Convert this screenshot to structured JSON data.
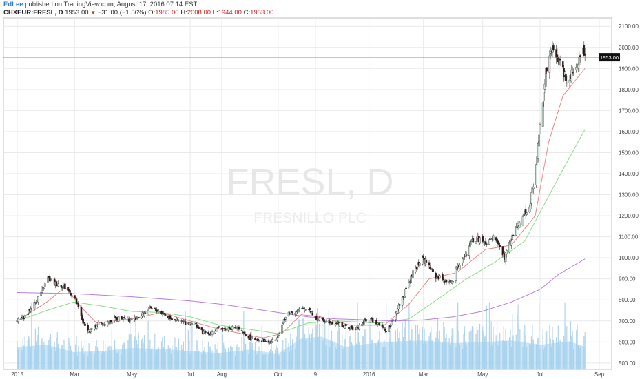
{
  "header": {
    "author": "EdLee",
    "published": "published on TradingView.com, August 17, 2016 07:14 EST",
    "symbol": "CHXEUR:FRESL, D",
    "last": "1953.00",
    "change": "−31.00 (−1.56%)",
    "o_label": "O:",
    "o_value": "1985.00",
    "h_label": "H:",
    "h_value": "2008.00",
    "l_label": "L:",
    "l_value": "1944.00",
    "c_label": "C:",
    "c_value": "1953.00"
  },
  "watermark": {
    "line1": "FRESL, D",
    "line2": "FRESNILLO PLC"
  },
  "colors": {
    "up": "#cfe5d9",
    "down": "#3a1212",
    "wick": "#333333",
    "ma_fast": "#e8868a",
    "ma_mid": "#86de86",
    "ma_slow": "#b77ce8",
    "volume": "#a3cde8",
    "volume_avg": "#9fd0ef",
    "grid": "#e9e9e9"
  },
  "chart_data": {
    "type": "candlestick",
    "title": "",
    "ylim": [
      470,
      2140
    ],
    "y_ticks": [
      500,
      600,
      700,
      800,
      900,
      1000,
      1100,
      1200,
      1300,
      1400,
      1500,
      1600,
      1700,
      1800,
      1900,
      2000,
      2100
    ],
    "y_tick_labels": [
      "500.00",
      "600.00",
      "700.00",
      "800.00",
      "900.00",
      "1000.00",
      "1100.00",
      "1200.00",
      "1300.00",
      "1400.00",
      "1500.00",
      "1600.00",
      "1700.00",
      "1800.00",
      "1900.00",
      "2000.00",
      "2100.00"
    ],
    "x_tick_labels": [
      {
        "label": "2015",
        "date": "2015-01-01"
      },
      {
        "label": "Mar",
        "date": "2015-03-02"
      },
      {
        "label": "May",
        "date": "2015-05-01"
      },
      {
        "label": "Jul",
        "date": "2015-07-01"
      },
      {
        "label": "Aug",
        "date": "2015-08-03"
      },
      {
        "label": "Oct",
        "date": "2015-10-01"
      },
      {
        "label": "9",
        "date": "2015-11-09"
      },
      {
        "label": "2016",
        "date": "2016-01-04"
      },
      {
        "label": "Mar",
        "date": "2016-03-01"
      },
      {
        "label": "May",
        "date": "2016-05-02"
      },
      {
        "label": "Jul",
        "date": "2016-07-01"
      },
      {
        "label": "Sep",
        "date": "2016-09-01"
      }
    ],
    "price_line": {
      "value": 1953,
      "label": "1953.00"
    },
    "close_path": [
      [
        "2015-01-01",
        700
      ],
      [
        "2015-01-10",
        725
      ],
      [
        "2015-01-20",
        790
      ],
      [
        "2015-01-28",
        850
      ],
      [
        "2015-02-02",
        905
      ],
      [
        "2015-02-07",
        880
      ],
      [
        "2015-02-14",
        875
      ],
      [
        "2015-02-20",
        860
      ],
      [
        "2015-03-01",
        820
      ],
      [
        "2015-03-06",
        760
      ],
      [
        "2015-03-12",
        680
      ],
      [
        "2015-03-18",
        650
      ],
      [
        "2015-03-27",
        690
      ],
      [
        "2015-04-05",
        690
      ],
      [
        "2015-04-14",
        710
      ],
      [
        "2015-04-22",
        720
      ],
      [
        "2015-04-29",
        705
      ],
      [
        "2015-05-09",
        720
      ],
      [
        "2015-05-20",
        760
      ],
      [
        "2015-05-30",
        745
      ],
      [
        "2015-06-08",
        720
      ],
      [
        "2015-06-18",
        700
      ],
      [
        "2015-06-28",
        690
      ],
      [
        "2015-07-06",
        690
      ],
      [
        "2015-07-12",
        650
      ],
      [
        "2015-07-20",
        640
      ],
      [
        "2015-07-29",
        660
      ],
      [
        "2015-08-10",
        665
      ],
      [
        "2015-08-19",
        670
      ],
      [
        "2015-08-25",
        640
      ],
      [
        "2015-09-04",
        615
      ],
      [
        "2015-09-13",
        610
      ],
      [
        "2015-09-22",
        600
      ],
      [
        "2015-09-28",
        610
      ],
      [
        "2015-10-05",
        680
      ],
      [
        "2015-10-12",
        740
      ],
      [
        "2015-10-23",
        750
      ],
      [
        "2015-11-02",
        760
      ],
      [
        "2015-11-10",
        710
      ],
      [
        "2015-11-22",
        700
      ],
      [
        "2015-12-01",
        690
      ],
      [
        "2015-12-11",
        670
      ],
      [
        "2015-12-21",
        660
      ],
      [
        "2016-01-01",
        705
      ],
      [
        "2016-01-09",
        700
      ],
      [
        "2016-01-15",
        690
      ],
      [
        "2016-01-22",
        650
      ],
      [
        "2016-01-29",
        700
      ],
      [
        "2016-02-05",
        780
      ],
      [
        "2016-02-14",
        870
      ],
      [
        "2016-02-20",
        940
      ],
      [
        "2016-02-29",
        1000
      ],
      [
        "2016-03-07",
        960
      ],
      [
        "2016-03-14",
        910
      ],
      [
        "2016-03-20",
        900
      ],
      [
        "2016-03-31",
        880
      ],
      [
        "2016-04-06",
        960
      ],
      [
        "2016-04-14",
        1010
      ],
      [
        "2016-04-20",
        1080
      ],
      [
        "2016-04-29",
        1090
      ],
      [
        "2016-05-06",
        1060
      ],
      [
        "2016-05-14",
        1100
      ],
      [
        "2016-05-19",
        1060
      ],
      [
        "2016-05-25",
        1000
      ],
      [
        "2016-06-03",
        1110
      ],
      [
        "2016-06-11",
        1190
      ],
      [
        "2016-06-19",
        1230
      ],
      [
        "2016-06-26",
        1390
      ],
      [
        "2016-06-30",
        1580
      ],
      [
        "2016-07-03",
        1720
      ],
      [
        "2016-07-07",
        1880
      ],
      [
        "2016-07-13",
        1980
      ],
      [
        "2016-07-20",
        1950
      ],
      [
        "2016-07-29",
        1850
      ],
      [
        "2016-08-06",
        1900
      ],
      [
        "2016-08-15",
        1985
      ],
      [
        "2016-08-17",
        1953
      ]
    ],
    "series": [
      {
        "type": "moving_average",
        "color": "#e8868a",
        "points": [
          [
            "2015-01-01",
            700
          ],
          [
            "2015-02-01",
            790
          ],
          [
            "2015-02-20",
            860
          ],
          [
            "2015-03-10",
            760
          ],
          [
            "2015-03-25",
            690
          ],
          [
            "2015-05-01",
            710
          ],
          [
            "2015-06-01",
            740
          ],
          [
            "2015-07-01",
            700
          ],
          [
            "2015-08-01",
            660
          ],
          [
            "2015-09-15",
            620
          ],
          [
            "2015-10-05",
            640
          ],
          [
            "2015-10-25",
            730
          ],
          [
            "2015-11-15",
            720
          ],
          [
            "2015-12-15",
            680
          ],
          [
            "2016-01-20",
            680
          ],
          [
            "2016-02-15",
            780
          ],
          [
            "2016-03-07",
            900
          ],
          [
            "2016-04-05",
            930
          ],
          [
            "2016-05-05",
            1040
          ],
          [
            "2016-06-01",
            1060
          ],
          [
            "2016-06-26",
            1200
          ],
          [
            "2016-07-10",
            1550
          ],
          [
            "2016-07-25",
            1770
          ],
          [
            "2016-08-17",
            1900
          ]
        ]
      },
      {
        "type": "moving_average",
        "color": "#86de86",
        "points": [
          [
            "2015-01-01",
            700
          ],
          [
            "2015-02-01",
            750
          ],
          [
            "2015-03-01",
            790
          ],
          [
            "2015-04-01",
            770
          ],
          [
            "2015-05-01",
            745
          ],
          [
            "2015-06-01",
            740
          ],
          [
            "2015-07-01",
            720
          ],
          [
            "2015-08-01",
            680
          ],
          [
            "2015-09-01",
            660
          ],
          [
            "2015-10-01",
            640
          ],
          [
            "2015-11-01",
            690
          ],
          [
            "2015-12-01",
            700
          ],
          [
            "2016-01-15",
            690
          ],
          [
            "2016-02-15",
            710
          ],
          [
            "2016-03-15",
            800
          ],
          [
            "2016-04-15",
            900
          ],
          [
            "2016-05-15",
            980
          ],
          [
            "2016-06-15",
            1080
          ],
          [
            "2016-07-05",
            1250
          ],
          [
            "2016-07-25",
            1420
          ],
          [
            "2016-08-17",
            1610
          ]
        ]
      },
      {
        "type": "moving_average",
        "color": "#b77ce8",
        "points": [
          [
            "2015-01-01",
            835
          ],
          [
            "2015-03-01",
            830
          ],
          [
            "2015-05-01",
            815
          ],
          [
            "2015-07-01",
            795
          ],
          [
            "2015-08-01",
            780
          ],
          [
            "2015-09-01",
            760
          ],
          [
            "2015-10-01",
            740
          ],
          [
            "2015-11-01",
            720
          ],
          [
            "2015-12-01",
            710
          ],
          [
            "2016-01-01",
            705
          ],
          [
            "2016-02-01",
            700
          ],
          [
            "2016-03-01",
            705
          ],
          [
            "2016-04-01",
            720
          ],
          [
            "2016-05-01",
            745
          ],
          [
            "2016-06-01",
            790
          ],
          [
            "2016-07-01",
            850
          ],
          [
            "2016-07-20",
            920
          ],
          [
            "2016-08-17",
            995
          ]
        ]
      }
    ],
    "volume_avg_path": [
      [
        "2015-01-01",
        0.55
      ],
      [
        "2015-02-01",
        0.6
      ],
      [
        "2015-03-01",
        0.42
      ],
      [
        "2015-04-01",
        0.45
      ],
      [
        "2015-05-01",
        0.52
      ],
      [
        "2015-06-01",
        0.5
      ],
      [
        "2015-07-01",
        0.44
      ],
      [
        "2015-08-01",
        0.4
      ],
      [
        "2015-09-01",
        0.48
      ],
      [
        "2015-10-01",
        0.38
      ],
      [
        "2015-10-25",
        0.75
      ],
      [
        "2015-11-15",
        0.8
      ],
      [
        "2015-12-10",
        0.55
      ],
      [
        "2016-01-01",
        0.62
      ],
      [
        "2016-02-01",
        0.68
      ],
      [
        "2016-03-01",
        0.7
      ],
      [
        "2016-04-01",
        0.64
      ],
      [
        "2016-05-01",
        0.66
      ],
      [
        "2016-06-01",
        0.7
      ],
      [
        "2016-07-01",
        0.6
      ],
      [
        "2016-08-01",
        0.68
      ],
      [
        "2016-08-17",
        0.55
      ]
    ]
  }
}
